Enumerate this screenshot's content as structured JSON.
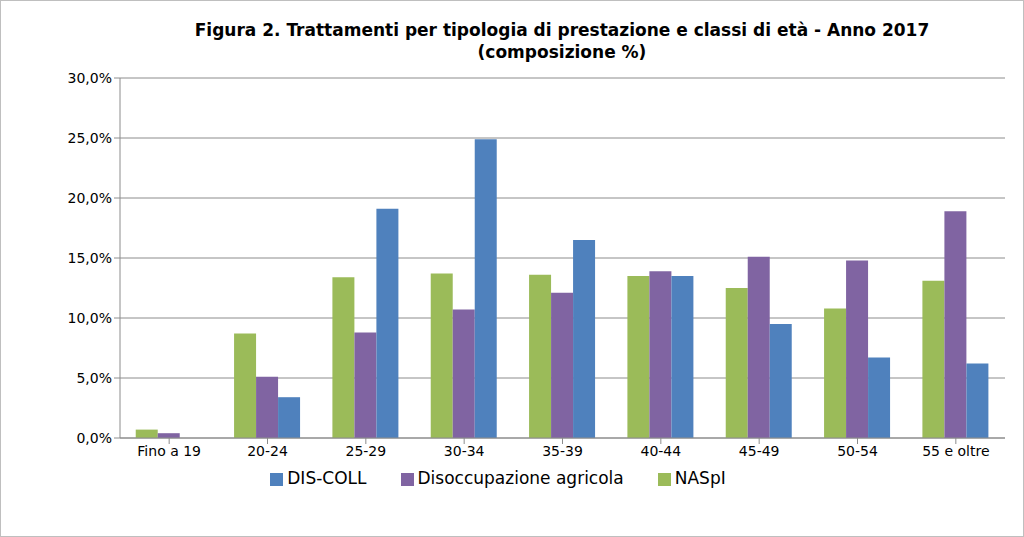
{
  "chart_data": {
    "type": "bar",
    "title": "Figura 2. Trattamenti per tipologia di prestazione e classi di età - Anno 2017",
    "subtitle": "(composizione %)",
    "categories": [
      "Fino a 19",
      "20-24",
      "25-29",
      "30-34",
      "35-39",
      "40-44",
      "45-49",
      "50-54",
      "55 e oltre"
    ],
    "series": [
      {
        "name": "NASpI",
        "color": "#9bbb59",
        "values": [
          0.7,
          8.7,
          13.4,
          13.7,
          13.6,
          13.5,
          12.5,
          10.8,
          13.1
        ]
      },
      {
        "name": "Disoccupazione agricola",
        "color": "#8064a2",
        "values": [
          0.4,
          5.1,
          8.8,
          10.7,
          12.1,
          13.9,
          15.1,
          14.8,
          18.9
        ]
      },
      {
        "name": "DIS-COLL",
        "color": "#4f81bd",
        "values": [
          0,
          3.4,
          19.1,
          24.9,
          16.5,
          13.5,
          9.5,
          6.7,
          6.2
        ]
      }
    ],
    "ylim": [
      0,
      30
    ],
    "yticks": [
      {
        "value": 0,
        "label": "0,0%"
      },
      {
        "value": 5,
        "label": "5,0%"
      },
      {
        "value": 10,
        "label": "10,0%"
      },
      {
        "value": 15,
        "label": "15,0%"
      },
      {
        "value": 20,
        "label": "20,0%"
      },
      {
        "value": 25,
        "label": "25,0%"
      },
      {
        "value": 30,
        "label": "30,0%"
      }
    ],
    "grid": true,
    "legend": "bottom"
  }
}
